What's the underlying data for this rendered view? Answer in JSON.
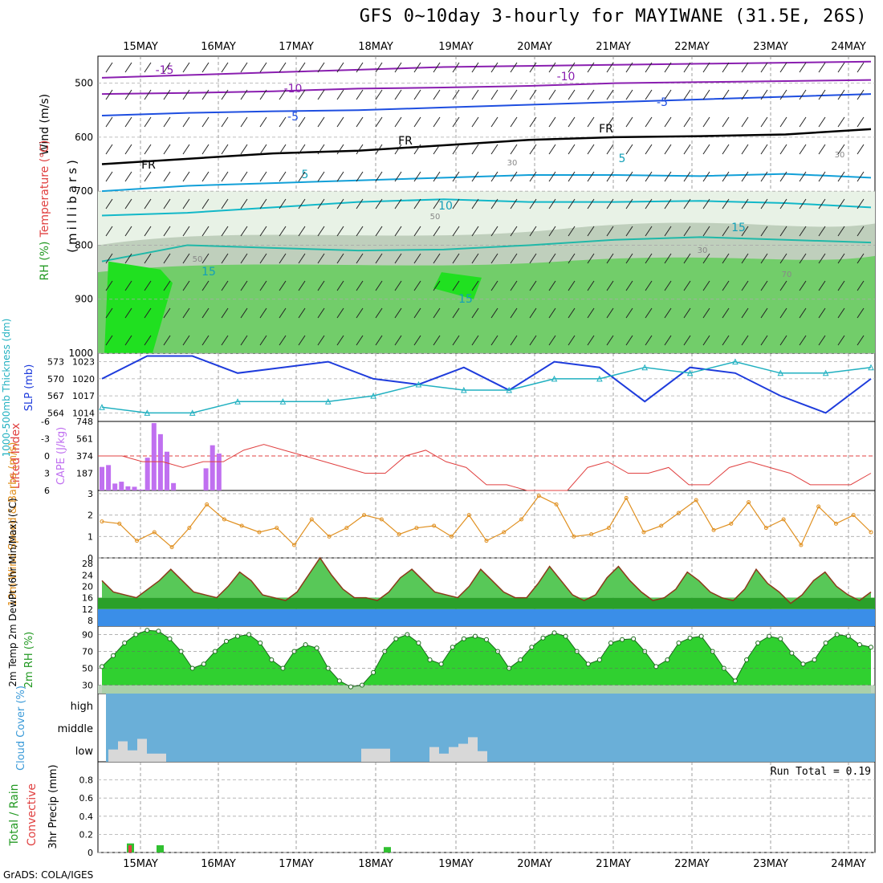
{
  "title": "GFS 0~10day 3-hourly for MAYIWANE (31.5E, 26S)",
  "footer": "GrADS: COLA/IGES",
  "chart_data": [
    {
      "type": "heatmap",
      "panel": "upper-air",
      "ylabel": "(millibars)",
      "side_labels": [
        "Wind (m/s)",
        "Temperature (°C)",
        "RH (%)"
      ],
      "yticks": [
        500,
        600,
        700,
        800,
        900,
        1000
      ],
      "ylim": [
        450,
        1000
      ],
      "x": [
        "15MAY",
        "16MAY",
        "17MAY",
        "18MAY",
        "19MAY",
        "20MAY",
        "21MAY",
        "22MAY",
        "23MAY",
        "24MAY"
      ],
      "contour_labels": [
        "-15",
        "-10",
        "-10",
        "-5",
        "-5",
        "FR",
        "FR",
        "FR",
        "5",
        "5",
        "10",
        "15",
        "15",
        "15",
        "30",
        "30",
        "30",
        "50",
        "50",
        "70"
      ],
      "isotherms": [
        {
          "label": "-15",
          "level": [
            490,
            485,
            480,
            475,
            470,
            468,
            466,
            464,
            462,
            460
          ]
        },
        {
          "label": "-10",
          "level": [
            520,
            518,
            515,
            510,
            508,
            505,
            500,
            498,
            496,
            494
          ]
        },
        {
          "label": "-5",
          "level": [
            560,
            555,
            552,
            550,
            545,
            540,
            535,
            530,
            525,
            520
          ]
        },
        {
          "label": "FR",
          "level": [
            650,
            640,
            630,
            625,
            615,
            605,
            600,
            598,
            595,
            585
          ]
        },
        {
          "label": "5",
          "level": [
            700,
            690,
            685,
            680,
            675,
            670,
            670,
            672,
            668,
            675
          ]
        },
        {
          "label": "10",
          "level": [
            745,
            740,
            730,
            720,
            715,
            720,
            720,
            718,
            722,
            730
          ]
        },
        {
          "label": "15",
          "level": [
            830,
            800,
            805,
            810,
            808,
            800,
            790,
            785,
            790,
            795
          ]
        }
      ]
    },
    {
      "type": "line",
      "panel": "slp-thickness",
      "ylabel": "SLP (mb)",
      "ylabel2": "1000-500mb Thickness (dm)",
      "yticks_right": [
        1014,
        1017,
        1020,
        1023
      ],
      "yticks_left": [
        564,
        567,
        570,
        573
      ],
      "series": [
        {
          "name": "SLP (mb)",
          "color": "#1e3cdc",
          "values": [
            1020,
            1024,
            1024,
            1021,
            1022,
            1023,
            1020,
            1019,
            1022,
            1018,
            1023,
            1022,
            1016,
            1022,
            1021,
            1017,
            1014,
            1020
          ]
        },
        {
          "name": "1000-500mb Thickness (dm)",
          "color": "#20b0c0",
          "values": [
            565,
            564,
            564,
            566,
            566,
            566,
            567,
            569,
            568,
            568,
            570,
            570,
            572,
            571,
            573,
            571,
            571,
            572
          ]
        }
      ]
    },
    {
      "type": "bar",
      "panel": "lifted-index-cape",
      "ylabel": "CAPE (J/kg)",
      "ylabel2": "Lifted Index",
      "yticks_cape": [
        187,
        374,
        561,
        748
      ],
      "yticks_li": [
        6,
        3,
        0,
        -3,
        -6
      ],
      "cape": [
        255,
        275,
        75,
        95,
        45,
        40,
        10,
        355,
        730,
        610,
        420,
        80,
        0,
        0,
        0,
        0,
        240,
        490,
        400
      ],
      "lifted_index": [
        0,
        0,
        1,
        1,
        2,
        1,
        1,
        -1,
        -2,
        -1,
        0,
        1,
        2,
        3,
        3,
        0,
        -1,
        1,
        2,
        5,
        5,
        6,
        6,
        6,
        2,
        1,
        3,
        3,
        2,
        5,
        5,
        2,
        1,
        2,
        3,
        5,
        5,
        5,
        3
      ]
    },
    {
      "type": "line",
      "panel": "wind-10m",
      "ylabel": "10m Wind Speed & Barbs (m/s)",
      "yticks": [
        0,
        1,
        2,
        3
      ],
      "ylim": [
        0,
        3
      ],
      "series": [
        {
          "name": "10m Wind Speed",
          "color": "#e09020",
          "values": [
            1.7,
            1.6,
            0.8,
            1.2,
            0.5,
            1.4,
            2.5,
            1.8,
            1.5,
            1.2,
            1.4,
            0.6,
            1.8,
            1.0,
            1.4,
            2.0,
            1.8,
            1.1,
            1.4,
            1.5,
            1.0,
            2.0,
            0.8,
            1.2,
            1.8,
            2.9,
            2.5,
            1.0,
            1.1,
            1.4,
            2.8,
            1.2,
            1.5,
            2.1,
            2.7,
            1.3,
            1.6,
            2.6,
            1.4,
            1.8,
            0.6,
            2.4,
            1.6,
            2.0,
            1.2
          ]
        }
      ]
    },
    {
      "type": "area",
      "panel": "temperature-2m",
      "ylabel": "2m Temp 2m DewPt (6hr Min/Max) (°C)",
      "yticks": [
        8,
        12,
        16,
        20,
        24,
        28
      ],
      "ylim": [
        6,
        30
      ],
      "temperature": [
        22,
        18,
        17,
        16,
        19,
        22,
        26,
        22,
        18,
        17,
        16,
        20,
        25,
        22,
        17,
        16,
        15,
        18,
        24,
        30,
        24,
        19,
        16,
        16,
        15,
        18,
        23,
        26,
        22,
        18,
        17,
        16,
        20,
        26,
        22,
        18,
        16,
        16,
        21,
        27,
        22,
        17,
        15,
        17,
        23,
        27,
        22,
        18,
        15,
        16,
        19,
        25,
        22,
        18,
        16,
        15,
        19,
        26,
        21,
        18,
        14,
        17,
        22,
        25,
        20,
        17,
        15,
        18
      ]
    },
    {
      "type": "area",
      "panel": "rh-2m",
      "ylabel": "2m RH (%)",
      "yticks": [
        30,
        50,
        70,
        90
      ],
      "ylim": [
        20,
        100
      ],
      "values": [
        52,
        65,
        80,
        90,
        95,
        94,
        85,
        70,
        50,
        55,
        70,
        82,
        88,
        90,
        80,
        60,
        50,
        70,
        78,
        74,
        50,
        35,
        28,
        30,
        45,
        70,
        85,
        90,
        80,
        60,
        55,
        75,
        85,
        88,
        84,
        70,
        50,
        60,
        75,
        86,
        92,
        88,
        70,
        55,
        60,
        80,
        84,
        85,
        70,
        52,
        60,
        80,
        86,
        88,
        70,
        50,
        35,
        60,
        80,
        88,
        85,
        68,
        55,
        60,
        80,
        90,
        88,
        78,
        75
      ]
    },
    {
      "type": "bar",
      "panel": "cloud-cover",
      "ylabel": "Cloud Cover (%)",
      "levels": [
        "high",
        "middle",
        "low"
      ],
      "low_cloud_x": [
        "15MAY",
        "18MAY",
        "19MAY"
      ],
      "low_cloud_values": [
        15,
        25,
        14,
        28,
        10,
        10,
        16,
        16,
        16,
        18,
        10,
        18,
        22,
        30,
        13
      ]
    },
    {
      "type": "bar",
      "panel": "precip",
      "ylabel": "3hr Precip (mm)",
      "ylabel2": "Total / Rain",
      "ylabel3": "Convective",
      "yticks": [
        0,
        0.2,
        0.4,
        0.6,
        0.8
      ],
      "ylim": [
        0,
        1.0
      ],
      "annotation": "Run Total = 0.19",
      "total": [
        0.05,
        0.04,
        0.03
      ],
      "convective": [
        0.04,
        0,
        0
      ]
    }
  ]
}
